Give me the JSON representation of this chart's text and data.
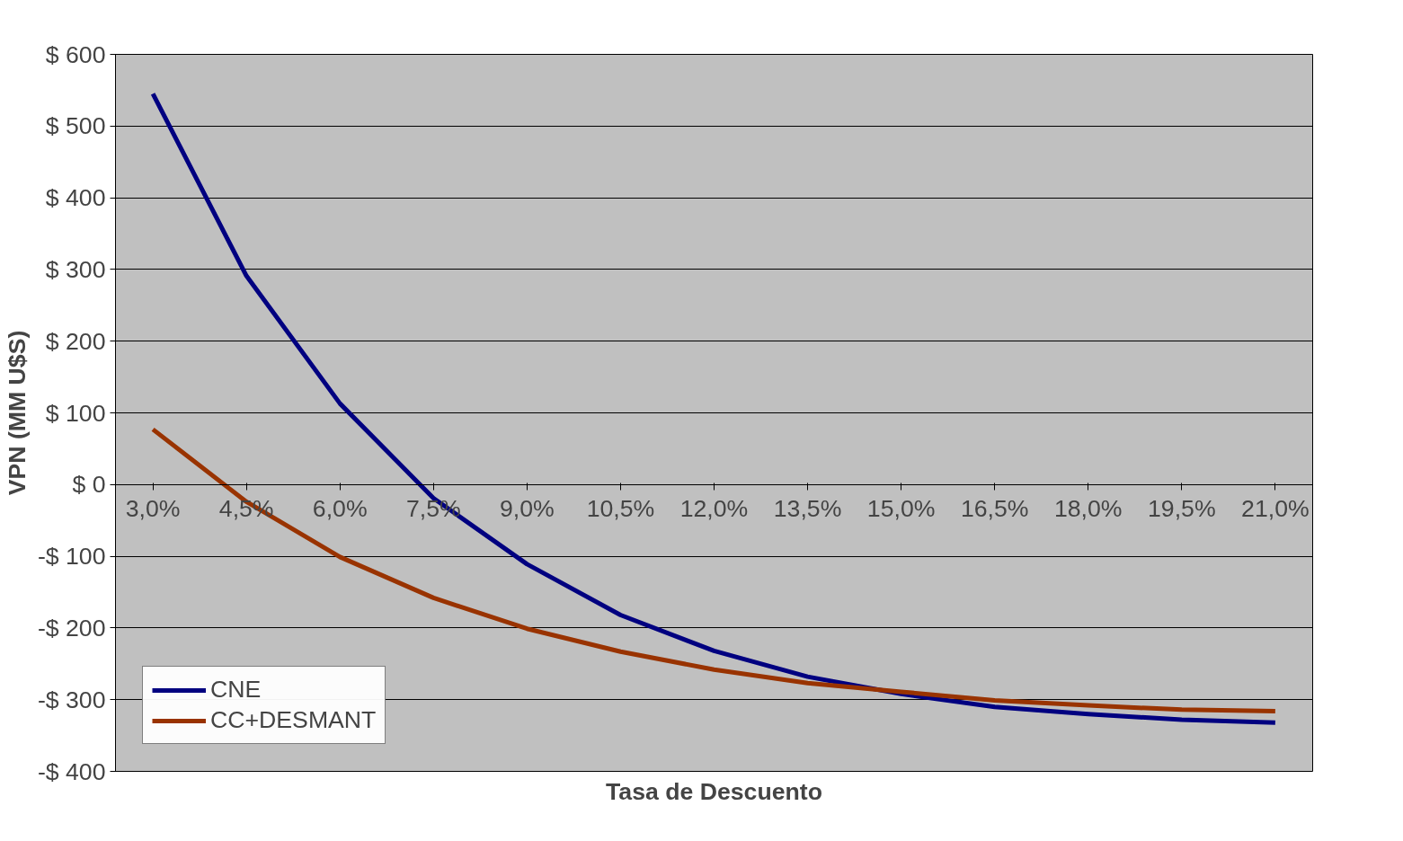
{
  "chart_data": {
    "type": "line",
    "xlabel": "Tasa de Descuento",
    "ylabel": "VPN (MM U$S)",
    "categories": [
      "3,0%",
      "4,5%",
      "6,0%",
      "7,5%",
      "9,0%",
      "10,5%",
      "12,0%",
      "13,5%",
      "15,0%",
      "16,5%",
      "18,0%",
      "19,5%",
      "21,0%"
    ],
    "series": [
      {
        "name": "CNE",
        "color": "#000080",
        "values": [
          545,
          291,
          113,
          -19,
          -111,
          -182,
          -232,
          -268,
          -292,
          -310,
          -320,
          -328,
          -332
        ]
      },
      {
        "name": "CC+DESMANT",
        "color": "#993300",
        "values": [
          77,
          -24,
          -101,
          -158,
          -201,
          -233,
          -258,
          -277,
          -289,
          -301,
          -308,
          -314,
          -316
        ]
      }
    ],
    "ylim": [
      -400,
      600
    ],
    "yticks": [
      {
        "value": -400,
        "label": "-$ 400"
      },
      {
        "value": -300,
        "label": "-$ 300"
      },
      {
        "value": -200,
        "label": "-$ 200"
      },
      {
        "value": -100,
        "label": "-$ 100"
      },
      {
        "value": 0,
        "label": "$ 0"
      },
      {
        "value": 100,
        "label": "$ 100"
      },
      {
        "value": 200,
        "label": "$ 200"
      },
      {
        "value": 300,
        "label": "$ 300"
      },
      {
        "value": 400,
        "label": "$ 400"
      },
      {
        "value": 500,
        "label": "$ 500"
      },
      {
        "value": 600,
        "label": "$ 600"
      }
    ],
    "grid": "y",
    "legend": "bottom left",
    "line_style": "solid"
  }
}
